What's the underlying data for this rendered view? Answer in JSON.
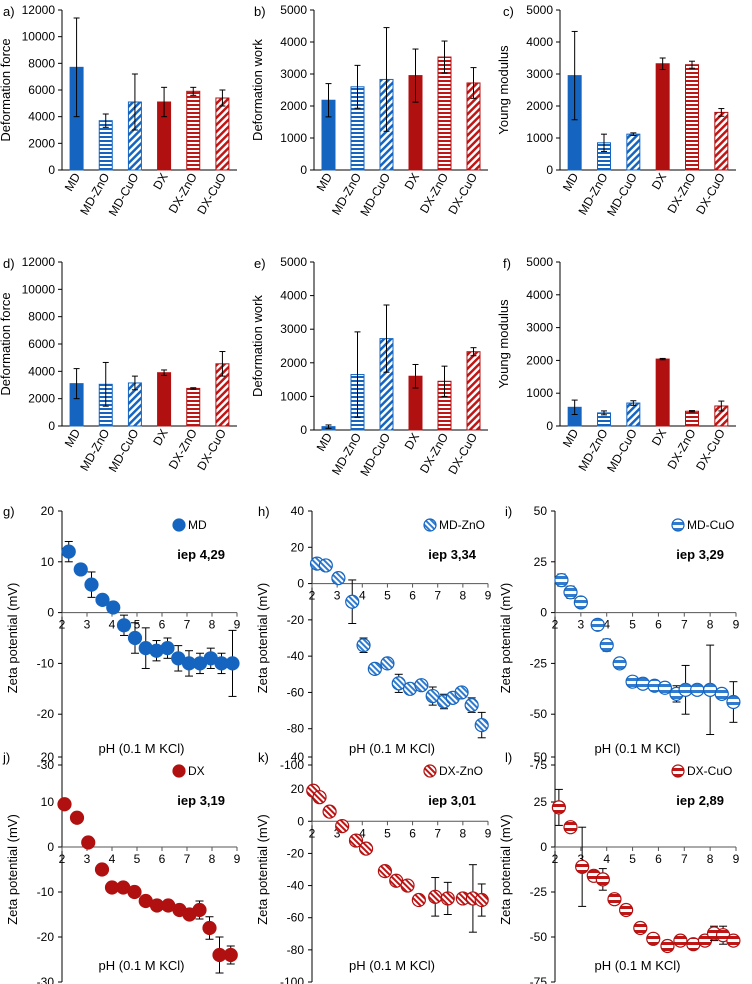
{
  "colors": {
    "md": "#1565C0",
    "md_light": "#4A90D9",
    "dx": "#B01010",
    "dx_light": "#D02020",
    "axis": "#000000",
    "zero_line": "#777777",
    "error_bar": "#000000"
  },
  "chart_data": [
    {
      "type": "bar",
      "label": "a)",
      "ylabel": "Deformation force",
      "ylim": [
        0,
        12000
      ],
      "yticks": [
        "0",
        "2000",
        "4000",
        "6000",
        "8000",
        "10000",
        "12000"
      ],
      "categories": [
        "MD",
        "MD-ZnO",
        "MD-CuO",
        "DX",
        "DX-ZnO",
        "DX-CuO"
      ],
      "patterns": [
        "solid",
        "hstripe",
        "dstripe",
        "solid",
        "hstripe",
        "dstripe"
      ],
      "series_color": [
        "md",
        "md",
        "md",
        "dx",
        "dx",
        "dx"
      ],
      "values": [
        7700,
        3700,
        5100,
        5100,
        5900,
        5400
      ],
      "errors": [
        3700,
        500,
        2100,
        1100,
        300,
        600
      ]
    },
    {
      "type": "bar",
      "label": "b)",
      "ylabel": "Deformation work",
      "ylim": [
        0,
        5000
      ],
      "yticks": [
        "0",
        "1000",
        "2000",
        "3000",
        "4000",
        "5000"
      ],
      "categories": [
        "MD",
        "MD-ZnO",
        "MD-CuO",
        "DX",
        "DX-ZnO",
        "DX-CuO"
      ],
      "patterns": [
        "solid",
        "hstripe",
        "dstripe",
        "solid",
        "hstripe",
        "dstripe"
      ],
      "series_color": [
        "md",
        "md",
        "md",
        "dx",
        "dx",
        "dx"
      ],
      "values": [
        2180,
        2600,
        2830,
        2950,
        3530,
        2720
      ],
      "errors": [
        520,
        670,
        1620,
        830,
        500,
        480
      ]
    },
    {
      "type": "bar",
      "label": "c)",
      "ylabel": "Young modulus",
      "ylim": [
        0,
        5000
      ],
      "yticks": [
        "0",
        "1000",
        "2000",
        "3000",
        "4000",
        "5000"
      ],
      "categories": [
        "MD",
        "MD-ZnO",
        "MD-CuO",
        "DX",
        "DX-ZnO",
        "DX-CuO"
      ],
      "patterns": [
        "solid",
        "hstripe",
        "dstripe",
        "solid",
        "hstripe",
        "dstripe"
      ],
      "series_color": [
        "md",
        "md",
        "md",
        "dx",
        "dx",
        "dx"
      ],
      "values": [
        2950,
        850,
        1120,
        3320,
        3290,
        1800
      ],
      "errors": [
        1380,
        270,
        40,
        180,
        110,
        120
      ]
    },
    {
      "type": "bar",
      "label": "d)",
      "ylabel": "Deformation force",
      "ylim": [
        0,
        12000
      ],
      "yticks": [
        "0",
        "2000",
        "4000",
        "6000",
        "8000",
        "10000",
        "12000"
      ],
      "categories": [
        "MD",
        "MD-ZnO",
        "MD-CuO",
        "DX",
        "DX-ZnO",
        "DX-CuO"
      ],
      "patterns": [
        "solid",
        "hstripe",
        "dstripe",
        "solid",
        "hstripe",
        "dstripe"
      ],
      "series_color": [
        "md",
        "md",
        "md",
        "dx",
        "dx",
        "dx"
      ],
      "values": [
        3100,
        3050,
        3150,
        3900,
        2750,
        4550
      ],
      "errors": [
        1100,
        1600,
        500,
        200,
        50,
        900
      ]
    },
    {
      "type": "bar",
      "label": "e)",
      "ylabel": "Deformation work",
      "ylim": [
        0,
        5000
      ],
      "yticks": [
        "0",
        "1000",
        "2000",
        "3000",
        "4000",
        "5000"
      ],
      "categories": [
        "MD",
        "MD-ZnO",
        "MD-CuO",
        "DX",
        "DX-ZnO",
        "DX-CuO"
      ],
      "patterns": [
        "solid",
        "hstripe",
        "dstripe",
        "solid",
        "hstripe",
        "dstripe"
      ],
      "series_color": [
        "md",
        "md",
        "md",
        "dx",
        "dx",
        "dx"
      ],
      "values": [
        100,
        1650,
        2720,
        1600,
        1450,
        2330
      ],
      "errors": [
        50,
        1270,
        1000,
        350,
        450,
        120
      ]
    },
    {
      "type": "bar",
      "label": "f)",
      "ylabel": "Young modulus",
      "ylim": [
        0,
        5000
      ],
      "yticks": [
        "0",
        "1000",
        "2000",
        "3000",
        "4000",
        "5000"
      ],
      "categories": [
        "MD",
        "MD-ZnO",
        "MD-CuO",
        "DX",
        "DX-ZnO",
        "DX-CuO"
      ],
      "patterns": [
        "solid",
        "hstripe",
        "dstripe",
        "solid",
        "hstripe",
        "dstripe"
      ],
      "series_color": [
        "md",
        "md",
        "md",
        "dx",
        "dx",
        "dx"
      ],
      "values": [
        570,
        400,
        700,
        2040,
        450,
        610
      ],
      "errors": [
        220,
        60,
        70,
        20,
        20,
        150
      ]
    },
    {
      "type": "scatter",
      "label": "g)",
      "legend": "MD",
      "iep": "iep 4,29",
      "marker": "solid",
      "color": "md",
      "xlabel": "pH (0.1 M KCl)",
      "ylabel": "Zeta potential (mV)",
      "xlim": [
        2,
        9
      ],
      "ylim": [
        -30,
        20
      ],
      "xticks": [
        "2",
        "3",
        "4",
        "5",
        "6",
        "7",
        "8",
        "9"
      ],
      "yticks": [
        "-30",
        "-20",
        "-10",
        "0",
        "10",
        "20"
      ],
      "x": [
        2.27,
        2.75,
        3.18,
        3.62,
        4.05,
        4.48,
        4.92,
        5.35,
        5.78,
        6.22,
        6.65,
        7.08,
        7.52,
        7.95,
        8.38,
        8.82
      ],
      "y": [
        12,
        8.5,
        5.5,
        2.5,
        1,
        -2.5,
        -5,
        -7,
        -7.5,
        -7,
        -9,
        -10,
        -10,
        -9,
        -10,
        -10
      ],
      "err": [
        2,
        0.5,
        2.5,
        0.5,
        0.5,
        2,
        3,
        4,
        2,
        2,
        2.5,
        2.5,
        2,
        2,
        2,
        6.5
      ]
    },
    {
      "type": "scatter",
      "label": "h)",
      "legend": "MD-ZnO",
      "iep": "iep 3,34",
      "marker": "diag",
      "color": "md",
      "xlabel": "pH (0.1 M KCl)",
      "ylabel": "Zeta potential (mV)",
      "xlim": [
        2,
        9
      ],
      "ylim": [
        -100,
        40
      ],
      "xticks": [
        "2",
        "3",
        "4",
        "5",
        "6",
        "7",
        "8",
        "9"
      ],
      "yticks": [
        "-100",
        "-80",
        "-60",
        "-40",
        "-20",
        "0",
        "20",
        "40"
      ],
      "x": [
        2.2,
        2.55,
        3.05,
        3.6,
        4.05,
        4.5,
        5.0,
        5.45,
        5.9,
        6.35,
        6.8,
        7.25,
        7.6,
        7.95,
        8.35,
        8.75
      ],
      "y": [
        11,
        10,
        3,
        -10,
        -34,
        -47,
        -44,
        -55,
        -58,
        -56,
        -62,
        -65,
        -63,
        -60,
        -67,
        -78
      ],
      "err": [
        2,
        2,
        2,
        12,
        4,
        2,
        2,
        5,
        3,
        2,
        5,
        4,
        3,
        2,
        4,
        7
      ]
    },
    {
      "type": "scatter",
      "label": "i)",
      "legend": "MD-CuO",
      "iep": "iep 3,29",
      "marker": "hbar",
      "color": "md",
      "xlabel": "pH (0.1 M KCl)",
      "ylabel": "Zeta potential (mV)",
      "xlim": [
        2,
        9
      ],
      "ylim": [
        -75,
        50
      ],
      "xaxis_at": 0,
      "xticks": [
        "2",
        "3",
        "4",
        "5",
        "6",
        "7",
        "8",
        "9"
      ],
      "yticks": [
        "-75",
        "-50",
        "-25",
        "0",
        "25",
        "50"
      ],
      "x": [
        2.25,
        2.6,
        3.0,
        3.65,
        4.0,
        4.5,
        5.0,
        5.4,
        5.85,
        6.25,
        6.7,
        7.05,
        7.5,
        8.0,
        8.45,
        8.9
      ],
      "y": [
        16,
        10,
        5,
        -6,
        -16,
        -25,
        -34,
        -35,
        -36,
        -37,
        -40,
        -38,
        -38,
        -38,
        -40,
        -44
      ],
      "err": [
        3,
        3,
        2,
        2,
        3,
        2,
        1,
        1,
        1,
        2,
        4,
        12,
        2,
        22,
        2,
        10
      ]
    },
    {
      "type": "scatter",
      "label": "j)",
      "legend": "DX",
      "iep": "iep 3,19",
      "marker": "solid",
      "color": "dx",
      "xlabel": "pH (0.1 M KCl)",
      "ylabel": "Zeta potential (mV)",
      "xlim": [
        2,
        9
      ],
      "ylim": [
        -30,
        20
      ],
      "xticks": [
        "2",
        "3",
        "4",
        "5",
        "6",
        "7",
        "8",
        "9"
      ],
      "yticks": [
        "-30",
        "-20",
        "-10",
        "0",
        "10",
        "20"
      ],
      "x": [
        2.1,
        2.6,
        3.05,
        3.6,
        4.0,
        4.45,
        4.9,
        5.35,
        5.8,
        6.25,
        6.7,
        7.1,
        7.5,
        7.9,
        8.3,
        8.75
      ],
      "y": [
        9.5,
        6.5,
        1,
        -5,
        -9,
        -9,
        -10,
        -12,
        -13,
        -13,
        -14,
        -15,
        -14,
        -18,
        -24,
        -24
      ],
      "err": [
        0.5,
        0.5,
        0.5,
        0.5,
        0.5,
        0.5,
        0.5,
        0.5,
        0.5,
        0.5,
        0.5,
        1,
        2,
        2.5,
        4,
        2
      ]
    },
    {
      "type": "scatter",
      "label": "k)",
      "legend": "DX-ZnO",
      "iep": "iep 3,01",
      "marker": "diag",
      "color": "dx",
      "xlabel": "pH (0.1 M KCl)",
      "ylabel": "Zeta potential (mV)",
      "xlim": [
        2,
        9
      ],
      "ylim": [
        -100,
        40
      ],
      "xticks": [
        "2",
        "3",
        "4",
        "5",
        "6",
        "7",
        "8",
        "9"
      ],
      "yticks": [
        "-100",
        "-80",
        "-60",
        "-40",
        "-20",
        "0",
        "20",
        "40"
      ],
      "x": [
        2.05,
        2.3,
        2.7,
        3.2,
        3.75,
        4.15,
        4.9,
        5.35,
        5.8,
        6.25,
        6.9,
        7.4,
        8.0,
        8.4,
        8.75
      ],
      "y": [
        19,
        15,
        6,
        -3,
        -12,
        -17,
        -31,
        -37,
        -40,
        -49,
        -47,
        -48,
        -48,
        -48,
        -49
      ],
      "err": [
        2,
        3,
        2,
        2,
        2,
        2,
        2,
        2,
        2,
        3,
        12,
        10,
        2,
        21,
        10
      ]
    },
    {
      "type": "scatter",
      "label": "l)",
      "legend": "DX-CuO",
      "iep": "iep 2,89",
      "marker": "hbar",
      "color": "dx",
      "xlabel": "pH (0.1 M KCl)",
      "ylabel": "Zeta potential (mV)",
      "xlim": [
        2,
        9
      ],
      "ylim": [
        -75,
        50
      ],
      "xaxis_at": 0,
      "xticks": [
        "2",
        "3",
        "4",
        "5",
        "6",
        "7",
        "8",
        "9"
      ],
      "yticks": [
        "-75",
        "-50",
        "-25",
        "0",
        "25",
        "50"
      ],
      "x": [
        2.15,
        2.6,
        3.05,
        3.5,
        3.85,
        4.3,
        4.75,
        5.3,
        5.8,
        6.35,
        6.85,
        7.35,
        7.8,
        8.15,
        8.5,
        8.9
      ],
      "y": [
        22,
        11,
        -11,
        -16,
        -18,
        -29,
        -35,
        -45,
        -51,
        -55,
        -52,
        -54,
        -52,
        -48,
        -49,
        -52
      ],
      "err": [
        10,
        2,
        22,
        2,
        6,
        2,
        2,
        2,
        2,
        2,
        2,
        2,
        2,
        4,
        5,
        2
      ]
    }
  ]
}
